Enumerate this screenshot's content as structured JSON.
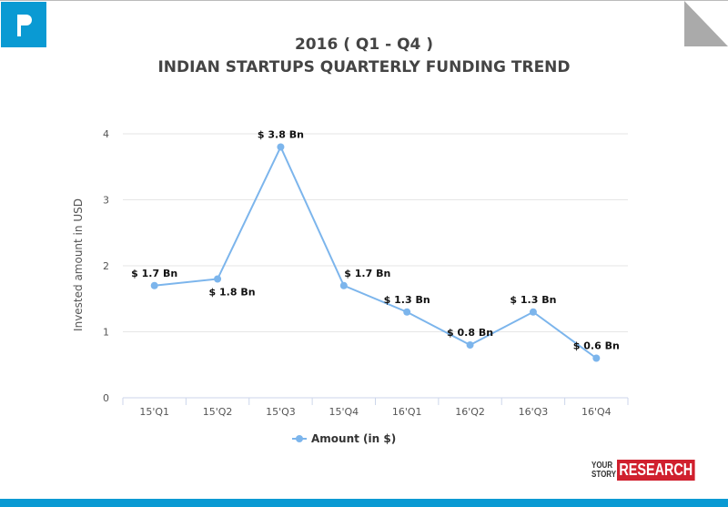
{
  "header": {
    "title_line1": "2016 ( Q1 - Q4 )",
    "title_line2": "INDIAN STARTUPS QUARTERLY FUNDING TREND"
  },
  "branding": {
    "logo_top": "YOUR",
    "logo_bottom": "STORY",
    "logo_box": "RESEARCH",
    "accent": "#0a9ad3",
    "brand_red": "#d0202e"
  },
  "chart_data": {
    "type": "line",
    "title": "2016 ( Q1 - Q4 )\nINDIAN STARTUPS QUARTERLY FUNDING TREND",
    "xlabel": "",
    "ylabel": "Invested amount in USD",
    "categories": [
      "15'Q1",
      "15'Q2",
      "15'Q3",
      "15'Q4",
      "16'Q1",
      "16'Q2",
      "16'Q3",
      "16'Q4"
    ],
    "series": [
      {
        "name": "Amount (in $)",
        "values": [
          1.7,
          1.8,
          3.8,
          1.7,
          1.3,
          0.8,
          1.3,
          0.6
        ],
        "color": "#7cb5ec",
        "data_labels": [
          "$ 1.7 Bn",
          "$ 1.8 Bn",
          "$ 3.8 Bn",
          "$ 1.7 Bn",
          "$ 1.3 Bn",
          "$ 0.8 Bn",
          "$ 1.3 Bn",
          "$ 0.6 Bn"
        ]
      }
    ],
    "ylim": [
      0,
      4
    ],
    "yticks": [
      "0",
      "1",
      "2",
      "3",
      "4"
    ],
    "grid": true,
    "legend": "bottom"
  }
}
